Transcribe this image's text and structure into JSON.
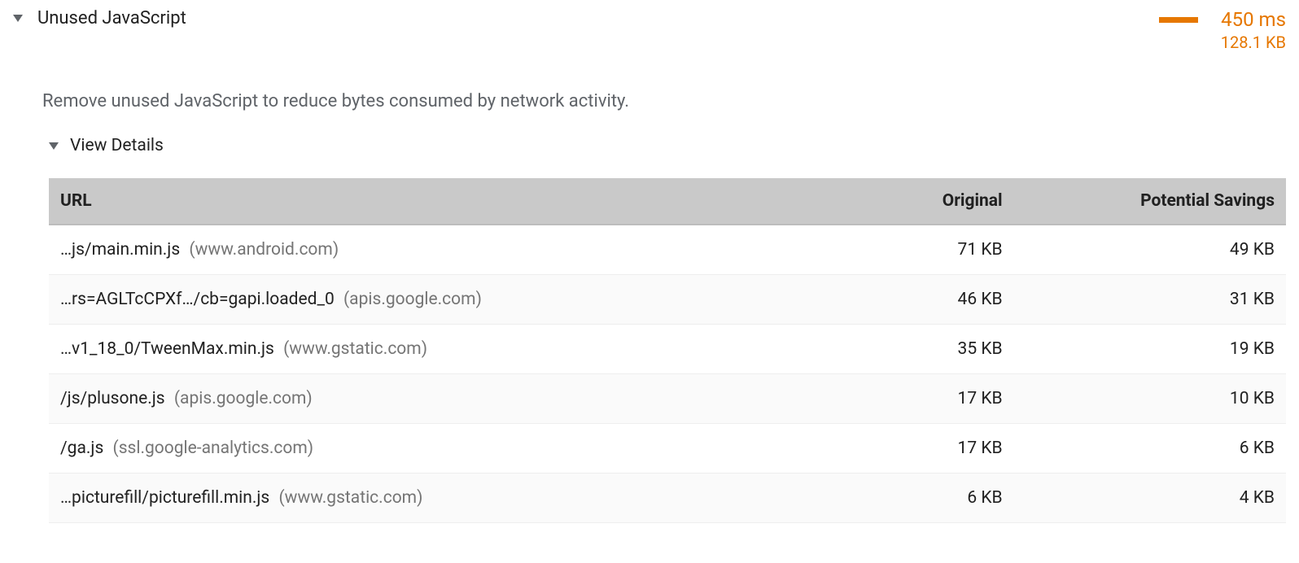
{
  "accent_color": "#e67700",
  "audit": {
    "title": "Unused JavaScript",
    "time_label": "450 ms",
    "size_label": "128.1 KB",
    "description": "Remove unused JavaScript to reduce bytes consumed by network activity.",
    "details_label": "View Details"
  },
  "table": {
    "columns": {
      "url": "URL",
      "original": "Original",
      "savings": "Potential Savings"
    },
    "rows": [
      {
        "path": "…js/main.min.js",
        "host": "(www.android.com)",
        "original": "71 KB",
        "savings": "49 KB"
      },
      {
        "path": "…rs=AGLTcCPXf…/cb=gapi.loaded_0",
        "host": "(apis.google.com)",
        "original": "46 KB",
        "savings": "31 KB"
      },
      {
        "path": "…v1_18_0/TweenMax.min.js",
        "host": "(www.gstatic.com)",
        "original": "35 KB",
        "savings": "19 KB"
      },
      {
        "path": "/js/plusone.js",
        "host": "(apis.google.com)",
        "original": "17 KB",
        "savings": "10 KB"
      },
      {
        "path": "/ga.js",
        "host": "(ssl.google-analytics.com)",
        "original": "17 KB",
        "savings": "6 KB"
      },
      {
        "path": "…picturefill/picturefill.min.js",
        "host": "(www.gstatic.com)",
        "original": "6 KB",
        "savings": "4 KB"
      }
    ]
  }
}
